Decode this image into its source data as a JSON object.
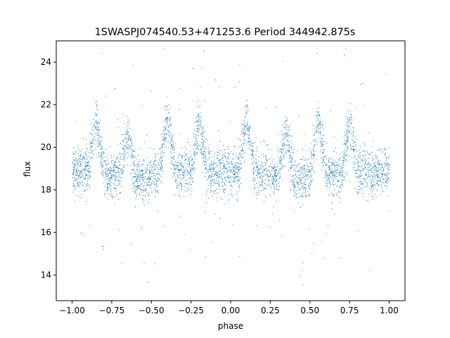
{
  "chart_data": {
    "type": "scatter",
    "title": "1SWASPJ074540.53+471253.6 Period 344942.875s",
    "xlabel": "phase",
    "ylabel": "flux",
    "xlim": [
      -1.1,
      1.1
    ],
    "ylim": [
      12.8,
      25.0
    ],
    "grid": false,
    "legend": "none",
    "marker_color": "#1f77b4",
    "x_ticks": [
      -1.0,
      -0.75,
      -0.5,
      -0.25,
      0.0,
      0.25,
      0.5,
      0.75,
      1.0
    ],
    "x_tick_labels": [
      "−1.00",
      "−0.75",
      "−0.50",
      "−0.25",
      "0.00",
      "0.25",
      "0.50",
      "0.75",
      "1.00"
    ],
    "y_ticks": [
      14,
      16,
      18,
      20,
      22,
      24
    ],
    "y_tick_labels": [
      "14",
      "16",
      "18",
      "20",
      "22",
      "24"
    ],
    "series": [
      {
        "x_range": [
          -1.0,
          1.0
        ],
        "x": [
          -1.0,
          -0.95,
          -0.9,
          -0.85,
          -0.8,
          -0.75,
          -0.7,
          -0.65,
          -0.6,
          -0.55,
          -0.5,
          -0.45,
          -0.4,
          -0.35,
          -0.3,
          -0.25,
          -0.2,
          -0.15,
          -0.1,
          -0.05,
          0.0,
          0.05,
          0.1,
          0.15,
          0.2,
          0.25,
          0.3,
          0.35,
          0.4,
          0.45,
          0.5,
          0.55,
          0.6,
          0.65,
          0.7,
          0.75,
          0.8,
          0.85,
          0.9,
          0.95,
          1.0
        ],
        "y_typical": [
          18.9,
          18.9,
          18.9,
          21.3,
          18.7,
          18.8,
          18.8,
          20.8,
          18.5,
          18.5,
          18.5,
          18.9,
          21.4,
          18.9,
          18.8,
          18.9,
          21.3,
          18.8,
          18.8,
          18.9,
          18.9,
          18.9,
          21.3,
          18.8,
          18.8,
          18.7,
          18.8,
          20.8,
          18.4,
          18.5,
          18.7,
          21.5,
          18.8,
          18.8,
          18.8,
          21.2,
          18.8,
          18.9,
          18.8,
          18.8,
          18.9
        ]
      }
    ]
  }
}
